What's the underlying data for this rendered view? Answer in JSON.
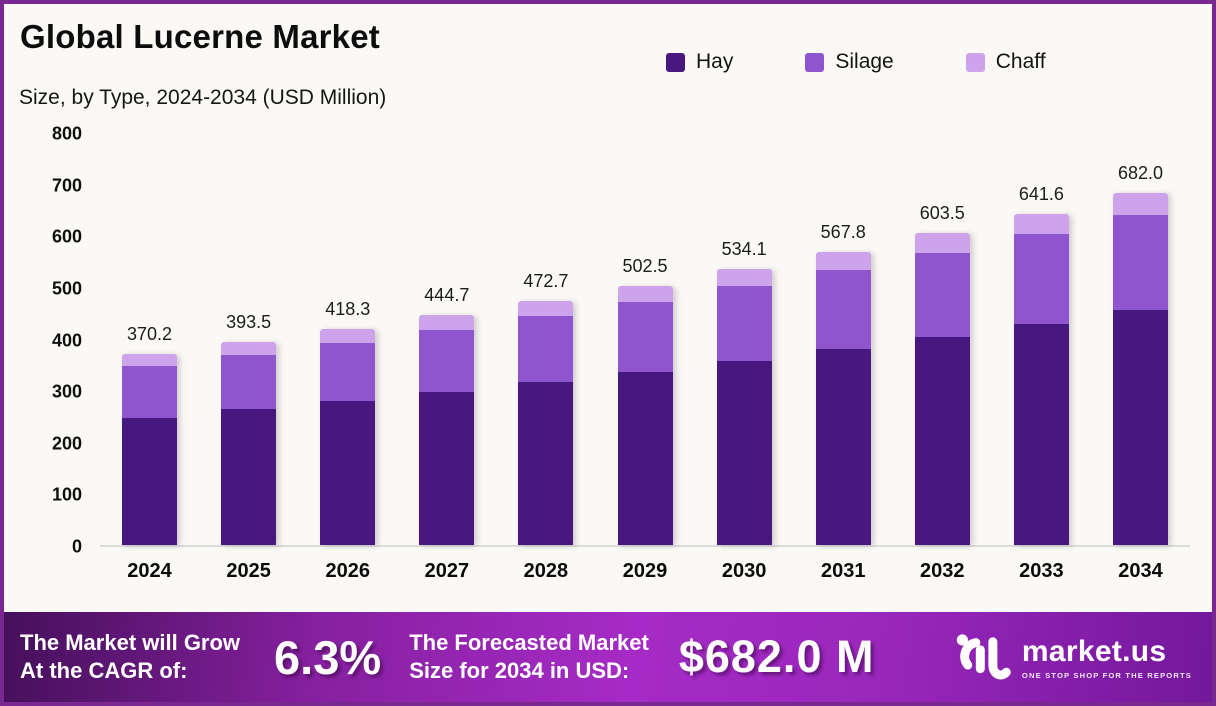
{
  "frame": {
    "border_color": "#7a2792",
    "background": "#fbf9f6"
  },
  "header": {
    "title": "Global Lucerne Market",
    "subtitle": "Size, by Type, 2024-2034 (USD Million)"
  },
  "legend": [
    {
      "label": "Hay",
      "color": "#47187f"
    },
    {
      "label": "Silage",
      "color": "#8e55cc"
    },
    {
      "label": "Chaff",
      "color": "#cda3ec"
    }
  ],
  "chart_data": {
    "type": "bar",
    "stacked": true,
    "title": "Global Lucerne Market Size, by Type, 2024-2034 (USD Million)",
    "units": "USD Million",
    "categories": [
      "2024",
      "2025",
      "2026",
      "2027",
      "2028",
      "2029",
      "2030",
      "2031",
      "2032",
      "2033",
      "2034"
    ],
    "totals": [
      370.2,
      393.5,
      418.3,
      444.7,
      472.7,
      502.5,
      534.1,
      567.8,
      603.5,
      641.6,
      682.0
    ],
    "series": [
      {
        "name": "Hay",
        "color": "#47187f",
        "values": [
          247.0,
          262.6,
          279.1,
          296.8,
          315.4,
          335.3,
          356.4,
          378.9,
          402.7,
          428.1,
          455.1
        ]
      },
      {
        "name": "Silage",
        "color": "#8e55cc",
        "values": [
          100.1,
          106.4,
          113.1,
          120.2,
          127.8,
          135.9,
          144.4,
          153.5,
          163.2,
          173.5,
          184.4
        ]
      },
      {
        "name": "Chaff",
        "color": "#cda3ec",
        "values": [
          23.1,
          24.5,
          26.1,
          27.7,
          29.5,
          31.3,
          33.3,
          35.4,
          37.6,
          40.0,
          42.5
        ]
      }
    ],
    "xlabel": "",
    "ylabel": "",
    "ylim": [
      0,
      800
    ],
    "yticks": [
      0,
      100,
      200,
      300,
      400,
      500,
      600,
      700,
      800
    ],
    "grid": false,
    "legend_position": "top-right"
  },
  "banner": {
    "cagr_label_line1": "The Market will Grow",
    "cagr_label_line2": "At the CAGR of:",
    "cagr_value": "6.3%",
    "forecast_label_line1": "The Forecasted Market",
    "forecast_label_line2": "Size for 2034 in USD:",
    "forecast_value": "$682.0 M",
    "logo_text": "market.us",
    "logo_tagline": "ONE STOP SHOP FOR THE REPORTS"
  }
}
